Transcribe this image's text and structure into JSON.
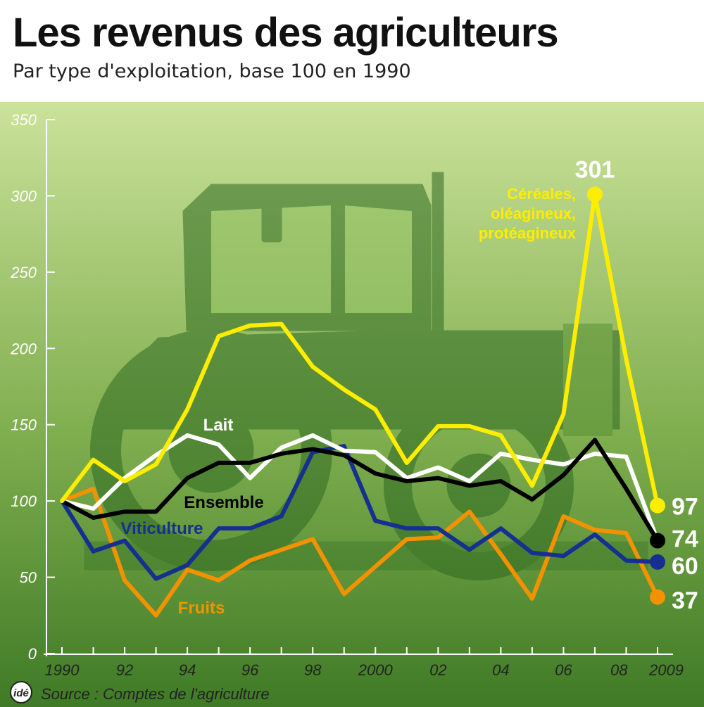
{
  "title": "Les revenus des agriculteurs",
  "subtitle": "Par type d'exploitation, base 100 en 1990",
  "source": "Source : Comptes de l'agriculture",
  "logo_text": "idé",
  "colors": {
    "bg_top": "#cbe29a",
    "bg_bottom": "#3f7a26",
    "tractor": "#2f6a22",
    "cereales": "#ffed00",
    "lait": "#ffffff",
    "ensemble": "#000000",
    "viticulture": "#16308f",
    "fruits": "#f39200"
  },
  "chart_data": {
    "type": "line",
    "title": "Les revenus des agriculteurs",
    "subtitle": "Par type d'exploitation, base 100 en 1990",
    "x": [
      1990,
      1991,
      1992,
      1993,
      1994,
      1995,
      1996,
      1997,
      1998,
      1999,
      2000,
      2001,
      2002,
      2003,
      2004,
      2005,
      2006,
      2007,
      2008,
      2009
    ],
    "x_tick_values": [
      1990,
      1992,
      1994,
      1996,
      1998,
      2000,
      2002,
      2004,
      2006,
      2008,
      2009
    ],
    "x_tick_labels": [
      "1990",
      "92",
      "94",
      "96",
      "98",
      "2000",
      "02",
      "04",
      "06",
      "08",
      "2009"
    ],
    "ylim": [
      0,
      350
    ],
    "y_ticks": [
      0,
      50,
      100,
      150,
      200,
      250,
      300,
      350
    ],
    "grid": false,
    "legend": "inline labels",
    "series": [
      {
        "name": "Céréales, oléagineux, protéagineux",
        "label_lines": [
          "Céréales,",
          "oléagineux,",
          "protéagineux"
        ],
        "color_key": "cereales",
        "values": [
          100,
          127,
          113,
          124,
          160,
          208,
          215,
          216,
          188,
          173,
          160,
          125,
          149,
          149,
          143,
          110,
          157,
          301,
          193,
          97
        ],
        "end_label": "97",
        "annotation": {
          "x": 2007,
          "text": "301"
        }
      },
      {
        "name": "Lait",
        "label_lines": [
          "Lait"
        ],
        "color_key": "lait",
        "values": [
          100,
          95,
          115,
          130,
          143,
          137,
          115,
          135,
          143,
          133,
          132,
          115,
          122,
          113,
          131,
          127,
          124,
          131,
          129,
          74
        ],
        "end_label": null
      },
      {
        "name": "Ensemble",
        "label_lines": [
          "Ensemble"
        ],
        "color_key": "ensemble",
        "values": [
          100,
          89,
          93,
          93,
          115,
          125,
          125,
          131,
          134,
          130,
          118,
          113,
          115,
          110,
          113,
          101,
          117,
          140,
          108,
          74
        ],
        "end_label": "74"
      },
      {
        "name": "Viticulture",
        "label_lines": [
          "Viticulture"
        ],
        "color_key": "viticulture",
        "values": [
          100,
          67,
          74,
          49,
          58,
          82,
          82,
          90,
          132,
          136,
          87,
          82,
          82,
          68,
          82,
          66,
          64,
          78,
          61,
          60
        ],
        "end_label": "60"
      },
      {
        "name": "Fruits",
        "label_lines": [
          "Fruits"
        ],
        "color_key": "fruits",
        "values": [
          100,
          108,
          48,
          25,
          55,
          48,
          61,
          68,
          75,
          39,
          57,
          75,
          76,
          93,
          65,
          36,
          90,
          81,
          79,
          37
        ],
        "end_label": "37"
      }
    ]
  }
}
